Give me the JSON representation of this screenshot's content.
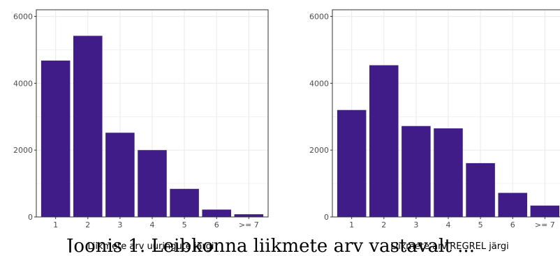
{
  "colors": {
    "bar": "#3f1c87",
    "grid": "#ebebeb",
    "panel_border": "#333333",
    "background": "#ffffff"
  },
  "caption": "Joonis 1. Leibkonna liikmete arv vastavalt ...",
  "chart_data": [
    {
      "type": "bar",
      "title": "",
      "xlabel": "Liikmete arv uuringute järgi",
      "ylabel": "",
      "categories": [
        "1",
        "2",
        "3",
        "4",
        "5",
        "6",
        ">= 7"
      ],
      "values": [
        4680,
        5420,
        2520,
        2000,
        840,
        220,
        80
      ],
      "ylim": [
        0,
        6200
      ],
      "yticks": [
        0,
        2000,
        4000,
        6000
      ],
      "grid": true
    },
    {
      "type": "bar",
      "title": "",
      "xlabel": "Liikmete arv REGREL järgi",
      "ylabel": "",
      "categories": [
        "1",
        "2",
        "3",
        "4",
        "5",
        "6",
        ">= 7"
      ],
      "values": [
        3200,
        4540,
        2720,
        2650,
        1610,
        720,
        340
      ],
      "ylim": [
        0,
        6200
      ],
      "yticks": [
        0,
        2000,
        4000,
        6000
      ],
      "grid": true
    }
  ]
}
